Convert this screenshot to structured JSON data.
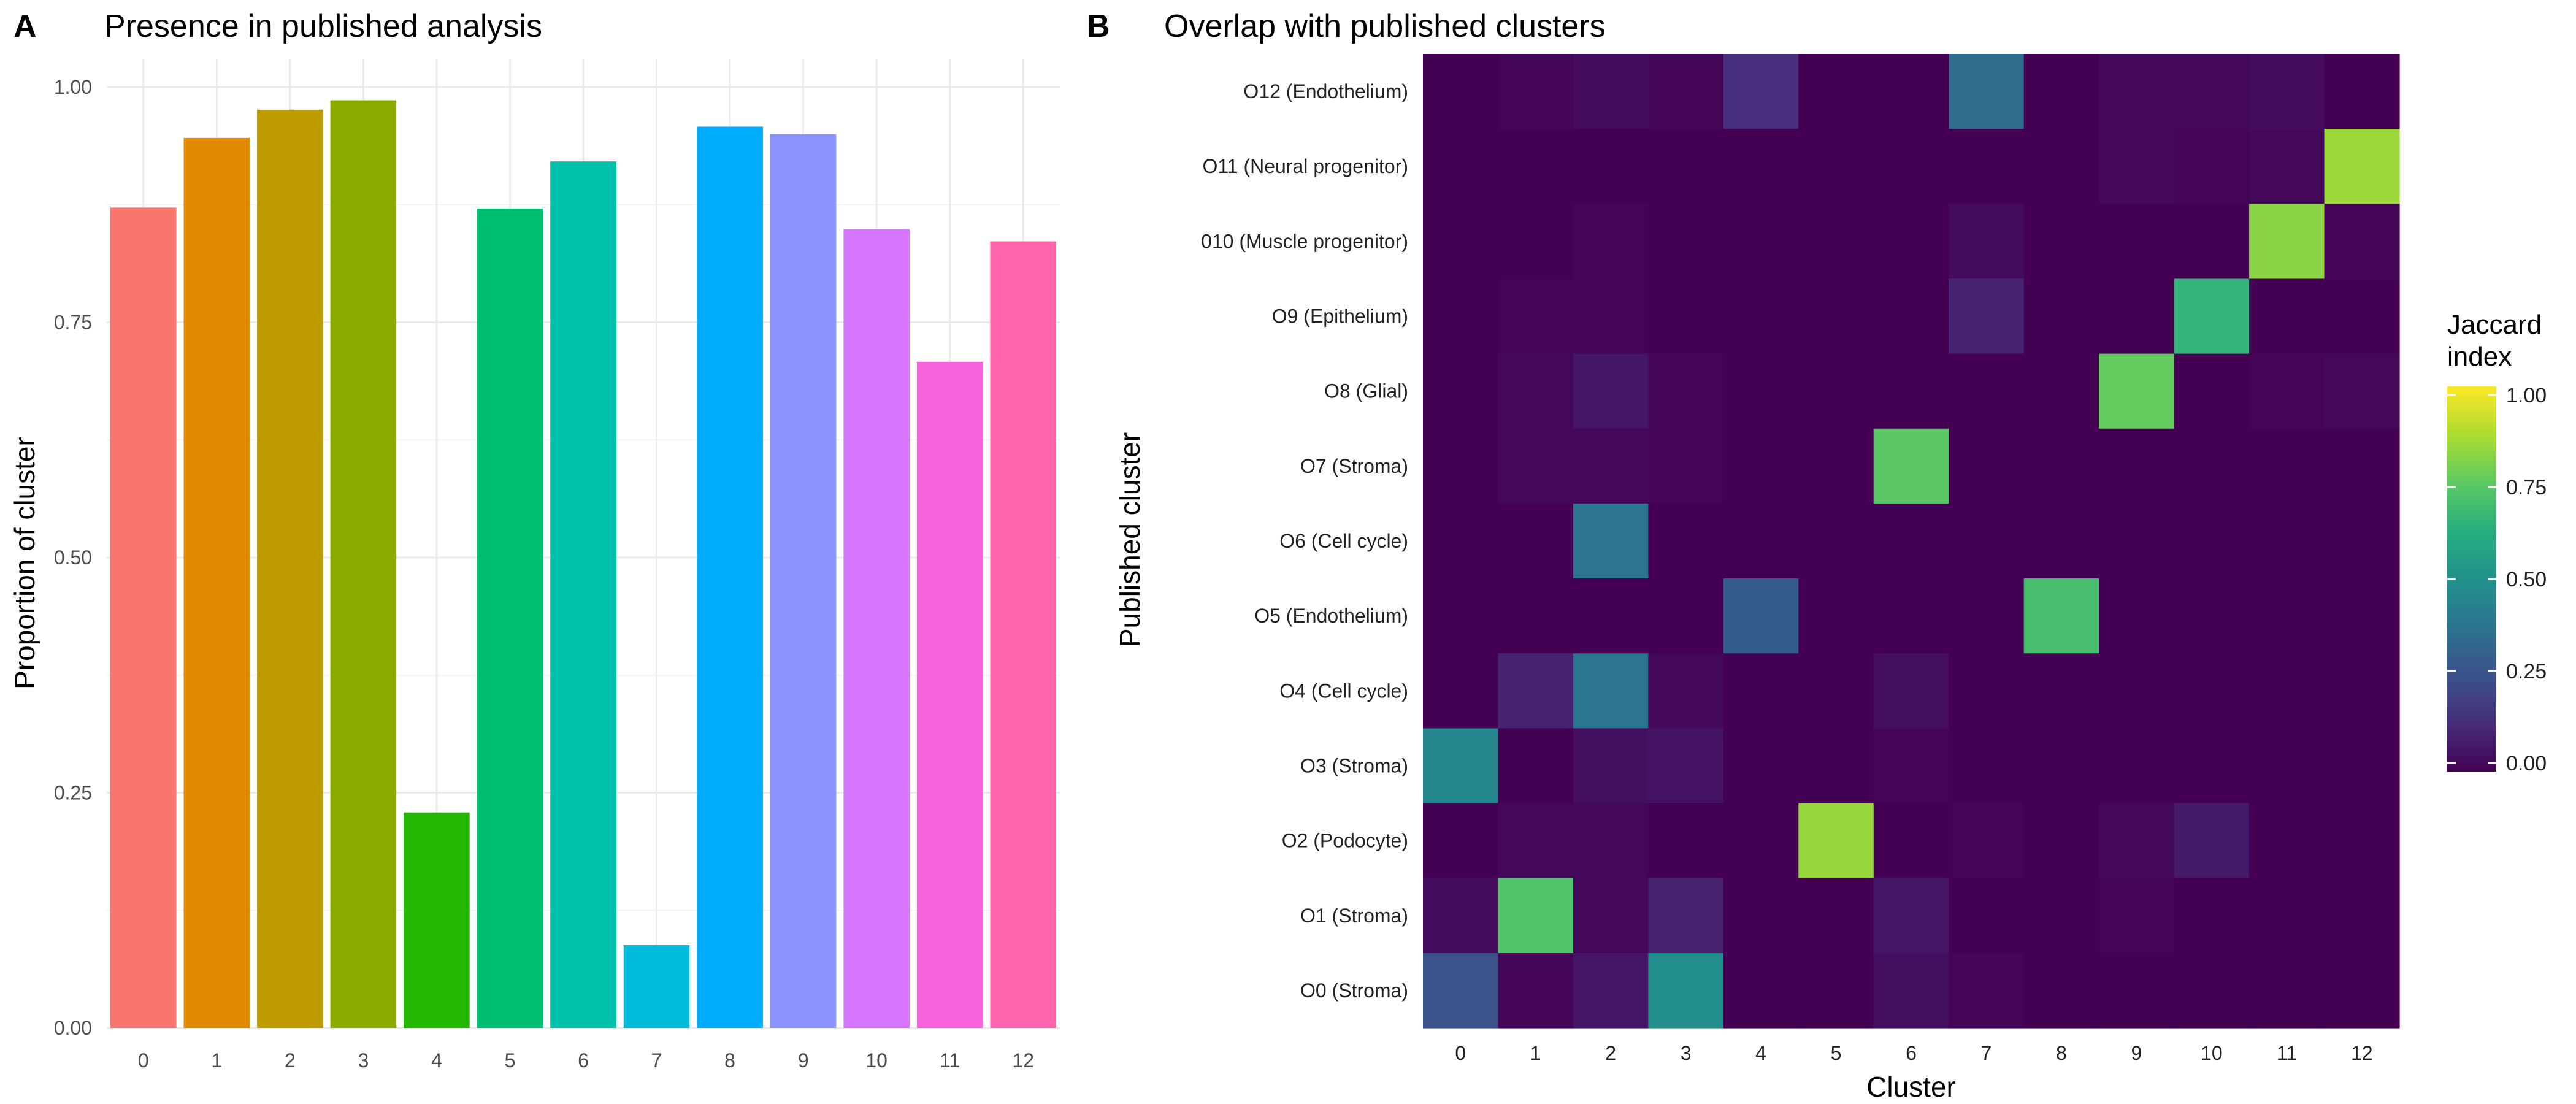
{
  "panels": {
    "a": {
      "letter": "A",
      "title": "Presence in published analysis"
    },
    "b": {
      "letter": "B",
      "title": "Overlap with published clusters"
    }
  },
  "chart_data": [
    {
      "type": "bar",
      "title": "Presence in published analysis",
      "xlabel": "",
      "ylabel": "Proportion of cluster",
      "categories": [
        "0",
        "1",
        "2",
        "3",
        "4",
        "5",
        "6",
        "7",
        "8",
        "9",
        "10",
        "11",
        "12"
      ],
      "values": [
        0.872,
        0.946,
        0.976,
        0.986,
        0.229,
        0.871,
        0.921,
        0.088,
        0.958,
        0.95,
        0.849,
        0.708,
        0.836
      ],
      "colors": [
        "#F8766D",
        "#E18A00",
        "#BE9C00",
        "#8CAB00",
        "#24B700",
        "#00BE70",
        "#00C1AB",
        "#00BBDA",
        "#00ACFC",
        "#8B93FF",
        "#D575FE",
        "#F962DD",
        "#FF65AC"
      ],
      "ylim": [
        0,
        1.03
      ],
      "yticks": [
        "0.00",
        "0.25",
        "0.50",
        "0.75",
        "1.00"
      ],
      "grid": true,
      "legend": "none"
    },
    {
      "type": "heatmap",
      "title": "Overlap with published clusters",
      "xlabel": "Cluster",
      "ylabel": "Published cluster",
      "x": [
        "0",
        "1",
        "2",
        "3",
        "4",
        "5",
        "6",
        "7",
        "8",
        "9",
        "10",
        "11",
        "12"
      ],
      "y": [
        "O12 (Endothelium)",
        "O11 (Neural progenitor)",
        "010 (Muscle progenitor)",
        "O9 (Epithelium)",
        "O8 (Glial)",
        "O7 (Stroma)",
        "O6 (Cell cycle)",
        "O5 (Endothelium)",
        "O4 (Cell cycle)",
        "O3 (Stroma)",
        "O2 (Podocyte)",
        "O1 (Stroma)",
        "O0 (Stroma)"
      ],
      "values": [
        [
          0.0,
          0.01,
          0.03,
          0.01,
          0.13,
          0.0,
          0.0,
          0.35,
          0.0,
          0.02,
          0.02,
          0.03,
          0.0
        ],
        [
          0.0,
          0.0,
          0.0,
          0.0,
          0.0,
          0.0,
          0.0,
          0.0,
          0.0,
          0.02,
          0.01,
          0.02,
          0.85
        ],
        [
          0.0,
          0.0,
          0.01,
          0.0,
          0.0,
          0.0,
          0.0,
          0.03,
          0.0,
          0.0,
          0.0,
          0.82,
          0.01
        ],
        [
          0.0,
          0.01,
          0.01,
          0.0,
          0.0,
          0.0,
          0.0,
          0.1,
          0.0,
          0.0,
          0.65,
          0.0,
          0.0
        ],
        [
          0.0,
          0.02,
          0.06,
          0.01,
          0.0,
          0.0,
          0.0,
          0.0,
          0.0,
          0.76,
          0.0,
          0.01,
          0.02
        ],
        [
          0.0,
          0.02,
          0.02,
          0.01,
          0.0,
          0.0,
          0.74,
          0.0,
          0.0,
          0.0,
          0.0,
          0.0,
          0.0
        ],
        [
          0.0,
          0.0,
          0.39,
          0.0,
          0.0,
          0.0,
          0.0,
          0.0,
          0.0,
          0.0,
          0.0,
          0.0,
          0.0
        ],
        [
          0.0,
          0.0,
          0.0,
          0.0,
          0.29,
          0.0,
          0.0,
          0.0,
          0.7,
          0.0,
          0.0,
          0.0,
          0.0
        ],
        [
          0.0,
          0.1,
          0.39,
          0.02,
          0.0,
          0.0,
          0.04,
          0.0,
          0.0,
          0.0,
          0.0,
          0.0,
          0.0
        ],
        [
          0.46,
          0.0,
          0.04,
          0.05,
          0.0,
          0.0,
          0.01,
          0.0,
          0.0,
          0.0,
          0.0,
          0.0,
          0.0
        ],
        [
          0.0,
          0.02,
          0.02,
          0.0,
          0.0,
          0.84,
          0.0,
          0.01,
          0.0,
          0.02,
          0.07,
          0.0,
          0.0
        ],
        [
          0.03,
          0.72,
          0.02,
          0.09,
          0.0,
          0.0,
          0.06,
          0.0,
          0.0,
          0.01,
          0.0,
          0.0,
          0.0
        ],
        [
          0.25,
          0.01,
          0.06,
          0.49,
          0.0,
          0.0,
          0.04,
          0.01,
          0.0,
          0.0,
          0.0,
          0.0,
          0.0
        ]
      ],
      "colorscale": "viridis",
      "zlim": [
        0,
        1
      ],
      "legend": {
        "title_line1": "Jaccard",
        "title_line2": "index",
        "ticks": [
          "0.00",
          "0.25",
          "0.50",
          "0.75",
          "1.00"
        ],
        "tick_values": [
          0,
          0.25,
          0.5,
          0.75,
          1.0
        ],
        "placement": "right"
      }
    }
  ]
}
